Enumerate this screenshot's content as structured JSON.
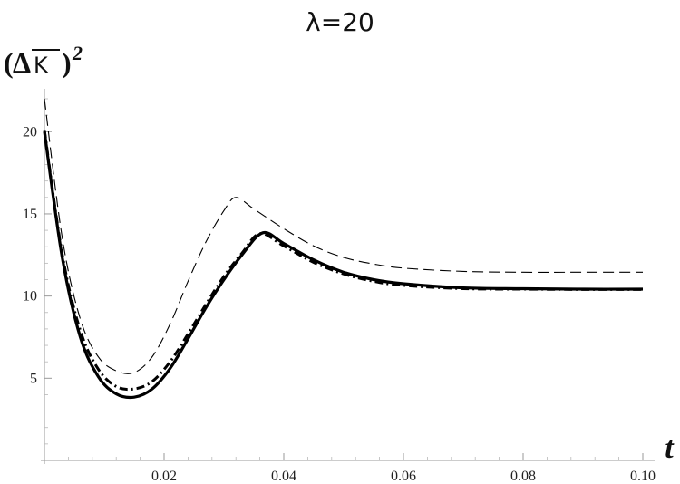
{
  "chart_data": {
    "type": "line",
    "title": "λ=20",
    "xlabel": "t",
    "ylabel": {
      "base": "(ΔK)",
      "overline": "K",
      "superscript": "2"
    },
    "xlim": [
      0.0,
      0.1
    ],
    "ylim": [
      0,
      22
    ],
    "x_ticks": [
      {
        "value": 0.02,
        "label": "0.02"
      },
      {
        "value": 0.04,
        "label": "0.04"
      },
      {
        "value": 0.06,
        "label": "0.06"
      },
      {
        "value": 0.08,
        "label": "0.08"
      },
      {
        "value": 0.1,
        "label": "0.10"
      }
    ],
    "y_ticks": [
      {
        "value": 5,
        "label": "5"
      },
      {
        "value": 10,
        "label": "10"
      },
      {
        "value": 15,
        "label": "15"
      },
      {
        "value": 20,
        "label": "20"
      }
    ],
    "grid": false,
    "legend": "none",
    "series": [
      {
        "style": "solid-thick",
        "color": "#000000",
        "x": [
          0.0,
          0.003,
          0.006,
          0.009,
          0.012,
          0.015,
          0.018,
          0.021,
          0.024,
          0.027,
          0.03,
          0.033,
          0.0365,
          0.04,
          0.045,
          0.05,
          0.055,
          0.06,
          0.07,
          0.08,
          0.09,
          0.1
        ],
        "y": [
          20.0,
          12.3,
          7.5,
          5.1,
          4.05,
          3.85,
          4.35,
          5.6,
          7.4,
          9.3,
          11.0,
          12.5,
          13.85,
          13.2,
          12.2,
          11.45,
          11.0,
          10.75,
          10.5,
          10.45,
          10.42,
          10.42
        ]
      },
      {
        "style": "dash-dot-thick",
        "color": "#000000",
        "x": [
          0.0,
          0.003,
          0.006,
          0.009,
          0.012,
          0.015,
          0.018,
          0.021,
          0.024,
          0.027,
          0.03,
          0.033,
          0.036,
          0.04,
          0.045,
          0.05,
          0.055,
          0.06,
          0.07,
          0.08,
          0.09,
          0.1
        ],
        "y": [
          20.1,
          12.5,
          7.9,
          5.55,
          4.5,
          4.35,
          4.8,
          6.0,
          7.7,
          9.5,
          11.2,
          12.6,
          13.8,
          13.05,
          12.05,
          11.35,
          10.9,
          10.65,
          10.45,
          10.42,
          10.4,
          10.4
        ]
      },
      {
        "style": "dashed-thin",
        "color": "#000000",
        "x": [
          0.0,
          0.003,
          0.006,
          0.009,
          0.012,
          0.015,
          0.018,
          0.021,
          0.024,
          0.027,
          0.03,
          0.032,
          0.035,
          0.04,
          0.045,
          0.05,
          0.055,
          0.06,
          0.07,
          0.08,
          0.09,
          0.1
        ],
        "y": [
          22.0,
          13.5,
          8.6,
          6.3,
          5.45,
          5.35,
          6.3,
          8.3,
          10.9,
          13.3,
          15.2,
          16.0,
          15.3,
          14.1,
          13.05,
          12.35,
          11.95,
          11.7,
          11.5,
          11.45,
          11.45,
          11.45
        ]
      }
    ]
  }
}
